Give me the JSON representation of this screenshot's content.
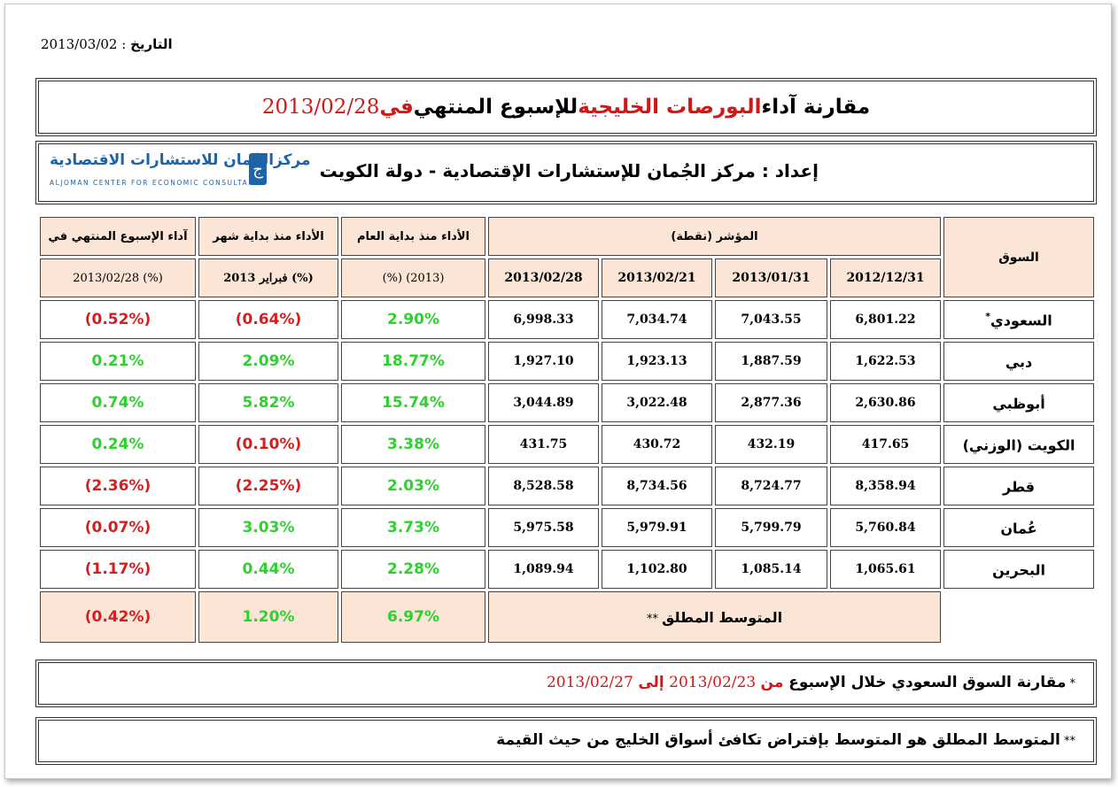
{
  "date_line": {
    "label": "التاريخ",
    "sep": " : ",
    "value": "2013/03/02"
  },
  "title": {
    "part1": "مقارنة آداء ",
    "part2": "البورصات الخليجية",
    "part3": " للإسبوع المنتهي ",
    "part4": "في",
    "date": " 2013/02/28"
  },
  "prepared": {
    "label": "إعداد",
    "sep": " : ",
    "text": "مركز الجُمان للإستشارات الإقتصادية - دولة الكويت"
  },
  "logo": {
    "arabic": "مركزالجُمان للاستشارات الاقتصادية",
    "english": "ALJOMAN CENTER FOR ECONOMIC CONSULTANCY",
    "mark": "ج"
  },
  "table": {
    "col_market": "السوق",
    "col_index": "المؤشر (نقطة)",
    "dates": [
      "2012/12/31",
      "2013/01/31",
      "2013/02/21",
      "2013/02/28"
    ],
    "col_ytd": "الأداء منذ بداية العام",
    "col_ytd_sub": "(%) (2013)",
    "col_mtd": "الأداء منذ بداية شهر",
    "col_mtd_sub": "فبراير 2013 (%)",
    "col_week": "آداء الإسبوع المنتهي في",
    "col_week_sub": "2013/02/28  (%)",
    "rows": [
      {
        "market": "السعودي",
        "star": "*",
        "v1": "6,801.22",
        "v2": "7,043.55",
        "v3": "7,034.74",
        "v4": "6,998.33",
        "ytd": "2.90%",
        "ytd_s": "pos",
        "mtd": "(0.64%)",
        "mtd_s": "neg",
        "wk": "(0.52%)",
        "wk_s": "neg"
      },
      {
        "market": "دبي",
        "star": "",
        "v1": "1,622.53",
        "v2": "1,887.59",
        "v3": "1,923.13",
        "v4": "1,927.10",
        "ytd": "18.77%",
        "ytd_s": "pos",
        "mtd": "2.09%",
        "mtd_s": "pos",
        "wk": "0.21%",
        "wk_s": "pos"
      },
      {
        "market": "أبوظبي",
        "star": "",
        "v1": "2,630.86",
        "v2": "2,877.36",
        "v3": "3,022.48",
        "v4": "3,044.89",
        "ytd": "15.74%",
        "ytd_s": "pos",
        "mtd": "5.82%",
        "mtd_s": "pos",
        "wk": "0.74%",
        "wk_s": "pos"
      },
      {
        "market": "الكويت (الوزني)",
        "star": "",
        "v1": "417.65",
        "v2": "432.19",
        "v3": "430.72",
        "v4": "431.75",
        "ytd": "3.38%",
        "ytd_s": "pos",
        "mtd": "(0.10%)",
        "mtd_s": "neg",
        "wk": "0.24%",
        "wk_s": "pos"
      },
      {
        "market": "قطر",
        "star": "",
        "v1": "8,358.94",
        "v2": "8,724.77",
        "v3": "8,734.56",
        "v4": "8,528.58",
        "ytd": "2.03%",
        "ytd_s": "pos",
        "mtd": "(2.25%)",
        "mtd_s": "neg",
        "wk": "(2.36%)",
        "wk_s": "neg"
      },
      {
        "market": "عُمان",
        "star": "",
        "v1": "5,760.84",
        "v2": "5,799.79",
        "v3": "5,979.91",
        "v4": "5,975.58",
        "ytd": "3.73%",
        "ytd_s": "pos",
        "mtd": "3.03%",
        "mtd_s": "pos",
        "wk": "(0.07%)",
        "wk_s": "neg"
      },
      {
        "market": "البحرين",
        "star": "",
        "v1": "1,065.61",
        "v2": "1,085.14",
        "v3": "1,102.80",
        "v4": "1,089.94",
        "ytd": "2.28%",
        "ytd_s": "pos",
        "mtd": "0.44%",
        "mtd_s": "pos",
        "wk": "(1.17%)",
        "wk_s": "neg"
      }
    ],
    "avg_label": "المتوسط المطلق",
    "avg_star": " **",
    "avg_ytd": "6.97%",
    "avg_mtd": "1.20%",
    "avg_wk": "(0.42%)"
  },
  "colors": {
    "positive": "#2fd12f",
    "negative": "#d51e1e",
    "header_bg": "#fbe5d6",
    "accent_red": "#d01818"
  },
  "note1": {
    "star": "* ",
    "text": "مقارنة السوق السعودي خلال الإسبوع ",
    "from": "من",
    "d1": " 2013/02/23 ",
    "to": "إلى",
    "d2": " 2013/02/27"
  },
  "note2": {
    "star": "** ",
    "text": "المتوسط المطلق هو المتوسط بإفتراض تكافئ أسواق الخليج من حيث القيمة"
  }
}
